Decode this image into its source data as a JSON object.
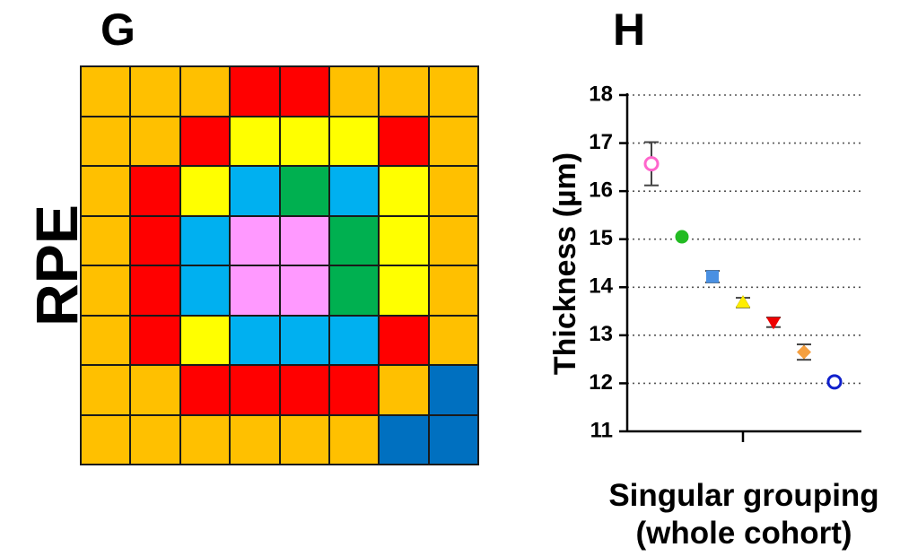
{
  "panels": {
    "g": {
      "letter": "G",
      "side_label": "RPE",
      "palette": {
        "O": "#FFC000",
        "R": "#FF0000",
        "Y": "#FFFF00",
        "C": "#00B0F0",
        "G": "#00B050",
        "P": "#FF99FF",
        "B": "#0070C0"
      },
      "rows": [
        [
          "O",
          "O",
          "O",
          "R",
          "R",
          "O",
          "O",
          "O"
        ],
        [
          "O",
          "O",
          "R",
          "Y",
          "Y",
          "Y",
          "R",
          "O"
        ],
        [
          "O",
          "R",
          "Y",
          "C",
          "G",
          "C",
          "Y",
          "O"
        ],
        [
          "O",
          "R",
          "C",
          "P",
          "P",
          "G",
          "Y",
          "O"
        ],
        [
          "O",
          "R",
          "C",
          "P",
          "P",
          "G",
          "Y",
          "O"
        ],
        [
          "O",
          "R",
          "Y",
          "C",
          "C",
          "C",
          "R",
          "O"
        ],
        [
          "O",
          "O",
          "R",
          "R",
          "R",
          "R",
          "O",
          "B"
        ],
        [
          "O",
          "O",
          "O",
          "O",
          "O",
          "O",
          "B",
          "B"
        ]
      ]
    },
    "h": {
      "letter": "H"
    }
  },
  "chart_data": {
    "type": "scatter",
    "title": "",
    "ylabel": "Thickness (µm)",
    "xlabel_lines": [
      "Singular grouping",
      "(whole cohort)"
    ],
    "ylim": [
      11,
      18
    ],
    "yticks": [
      "11",
      "12",
      "13",
      "14",
      "15",
      "16",
      "17",
      "18"
    ],
    "grid": "horizontal-dotted",
    "points": [
      {
        "y": 16.57,
        "err": 0.45,
        "marker": "circle-open",
        "color": "#FF66CC"
      },
      {
        "y": 15.05,
        "err": 0.0,
        "marker": "circle",
        "color": "#22BB22"
      },
      {
        "y": 14.22,
        "err": 0.12,
        "marker": "square",
        "color": "#4A90E2"
      },
      {
        "y": 13.68,
        "err": 0.1,
        "marker": "triangle-up",
        "color": "#FFEE00"
      },
      {
        "y": 13.27,
        "err": 0.1,
        "marker": "triangle-down",
        "color": "#EE0000"
      },
      {
        "y": 12.65,
        "err": 0.16,
        "marker": "diamond",
        "color": "#F5A040"
      },
      {
        "y": 12.03,
        "err": 0.05,
        "marker": "circle-open",
        "color": "#1020CC"
      }
    ]
  }
}
